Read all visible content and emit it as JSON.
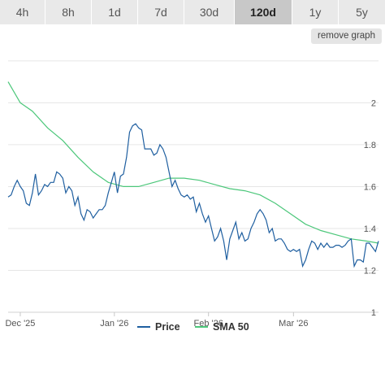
{
  "tabs": [
    {
      "label": "4h",
      "active": false
    },
    {
      "label": "8h",
      "active": false
    },
    {
      "label": "1d",
      "active": false
    },
    {
      "label": "7d",
      "active": false
    },
    {
      "label": "30d",
      "active": false
    },
    {
      "label": "120d",
      "active": true
    },
    {
      "label": "1y",
      "active": false
    },
    {
      "label": "5y",
      "active": false
    }
  ],
  "remove_graph_label": "remove graph",
  "colors": {
    "price": "#1f5fa0",
    "sma": "#4cc77a",
    "grid": "#e6e6e6",
    "axis_text": "#555555"
  },
  "chart_data": {
    "type": "line",
    "x_tick_labels": [
      "Dec '25",
      "Jan '26",
      "Feb '26",
      "Mar '26"
    ],
    "x_tick_dates": [
      "2025-12-01",
      "2026-01-01",
      "2026-02-01",
      "2026-03-01"
    ],
    "y_ticks": [
      1,
      1.2,
      1.4,
      1.6,
      1.8,
      2
    ],
    "y_tick_labels": [
      "1",
      "1.2",
      "1.4",
      "1.6",
      "1.8",
      "2"
    ],
    "ylim": [
      1,
      2.25
    ],
    "xlim": [
      "2025-11-27",
      "2026-03-29"
    ],
    "grid": true,
    "legend_position": "bottom",
    "series": [
      {
        "name": "Price",
        "x": [
          "2025-11-27",
          "2025-11-28",
          "2025-11-29",
          "2025-11-30",
          "2025-12-01",
          "2025-12-02",
          "2025-12-03",
          "2025-12-04",
          "2025-12-05",
          "2025-12-06",
          "2025-12-07",
          "2025-12-08",
          "2025-12-09",
          "2025-12-10",
          "2025-12-11",
          "2025-12-12",
          "2025-12-13",
          "2025-12-14",
          "2025-12-15",
          "2025-12-16",
          "2025-12-17",
          "2025-12-18",
          "2025-12-19",
          "2025-12-20",
          "2025-12-21",
          "2025-12-22",
          "2025-12-23",
          "2025-12-24",
          "2025-12-25",
          "2025-12-26",
          "2025-12-27",
          "2025-12-28",
          "2025-12-29",
          "2025-12-30",
          "2025-12-31",
          "2026-01-01",
          "2026-01-02",
          "2026-01-03",
          "2026-01-04",
          "2026-01-05",
          "2026-01-06",
          "2026-01-07",
          "2026-01-08",
          "2026-01-09",
          "2026-01-10",
          "2026-01-11",
          "2026-01-12",
          "2026-01-13",
          "2026-01-14",
          "2026-01-15",
          "2026-01-16",
          "2026-01-17",
          "2026-01-18",
          "2026-01-19",
          "2026-01-20",
          "2026-01-21",
          "2026-01-22",
          "2026-01-23",
          "2026-01-24",
          "2026-01-25",
          "2026-01-26",
          "2026-01-27",
          "2026-01-28",
          "2026-01-29",
          "2026-01-30",
          "2026-01-31",
          "2026-02-01",
          "2026-02-02",
          "2026-02-03",
          "2026-02-04",
          "2026-02-05",
          "2026-02-06",
          "2026-02-07",
          "2026-02-08",
          "2026-02-09",
          "2026-02-10",
          "2026-02-11",
          "2026-02-12",
          "2026-02-13",
          "2026-02-14",
          "2026-02-15",
          "2026-02-16",
          "2026-02-17",
          "2026-02-18",
          "2026-02-19",
          "2026-02-20",
          "2026-02-21",
          "2026-02-22",
          "2026-02-23",
          "2026-02-24",
          "2026-02-25",
          "2026-02-26",
          "2026-02-27",
          "2026-02-28",
          "2026-03-01",
          "2026-03-02",
          "2026-03-03",
          "2026-03-04",
          "2026-03-05",
          "2026-03-06",
          "2026-03-07",
          "2026-03-08",
          "2026-03-09",
          "2026-03-10",
          "2026-03-11",
          "2026-03-12",
          "2026-03-13",
          "2026-03-14",
          "2026-03-15",
          "2026-03-16",
          "2026-03-17",
          "2026-03-18",
          "2026-03-19",
          "2026-03-20",
          "2026-03-21",
          "2026-03-22",
          "2026-03-23",
          "2026-03-24",
          "2026-03-25",
          "2026-03-26",
          "2026-03-27",
          "2026-03-28",
          "2026-03-29"
        ],
        "y": [
          1.55,
          1.56,
          1.6,
          1.63,
          1.6,
          1.58,
          1.52,
          1.51,
          1.57,
          1.66,
          1.56,
          1.58,
          1.61,
          1.6,
          1.62,
          1.62,
          1.67,
          1.66,
          1.64,
          1.57,
          1.6,
          1.58,
          1.51,
          1.55,
          1.47,
          1.44,
          1.49,
          1.48,
          1.45,
          1.47,
          1.49,
          1.49,
          1.51,
          1.57,
          1.62,
          1.67,
          1.57,
          1.65,
          1.66,
          1.74,
          1.86,
          1.89,
          1.9,
          1.88,
          1.87,
          1.78,
          1.78,
          1.78,
          1.75,
          1.76,
          1.8,
          1.78,
          1.74,
          1.67,
          1.6,
          1.63,
          1.59,
          1.56,
          1.55,
          1.56,
          1.54,
          1.55,
          1.48,
          1.52,
          1.47,
          1.43,
          1.46,
          1.4,
          1.34,
          1.36,
          1.4,
          1.34,
          1.25,
          1.35,
          1.39,
          1.43,
          1.35,
          1.38,
          1.34,
          1.35,
          1.4,
          1.43,
          1.47,
          1.49,
          1.47,
          1.44,
          1.38,
          1.4,
          1.34,
          1.35,
          1.35,
          1.33,
          1.3,
          1.29,
          1.3,
          1.29,
          1.3,
          1.22,
          1.25,
          1.3,
          1.34,
          1.33,
          1.3,
          1.33,
          1.31,
          1.33,
          1.31,
          1.31,
          1.32,
          1.32,
          1.31,
          1.32,
          1.34,
          1.35,
          1.22,
          1.25,
          1.25,
          1.24,
          1.33,
          1.33,
          1.31,
          1.29,
          1.34
        ]
      },
      {
        "name": "SMA 50",
        "x": [
          "2025-11-27",
          "2025-12-01",
          "2025-12-05",
          "2025-12-10",
          "2025-12-15",
          "2025-12-20",
          "2025-12-25",
          "2025-12-30",
          "2026-01-04",
          "2026-01-09",
          "2026-01-14",
          "2026-01-19",
          "2026-01-24",
          "2026-01-29",
          "2026-02-03",
          "2026-02-08",
          "2026-02-13",
          "2026-02-18",
          "2026-02-23",
          "2026-02-28",
          "2026-03-05",
          "2026-03-10",
          "2026-03-15",
          "2026-03-20",
          "2026-03-25",
          "2026-03-29"
        ],
        "y": [
          2.1,
          2,
          1.96,
          1.88,
          1.82,
          1.74,
          1.67,
          1.62,
          1.6,
          1.6,
          1.62,
          1.64,
          1.64,
          1.63,
          1.61,
          1.59,
          1.58,
          1.56,
          1.52,
          1.47,
          1.42,
          1.39,
          1.37,
          1.35,
          1.34,
          1.33
        ]
      }
    ]
  }
}
